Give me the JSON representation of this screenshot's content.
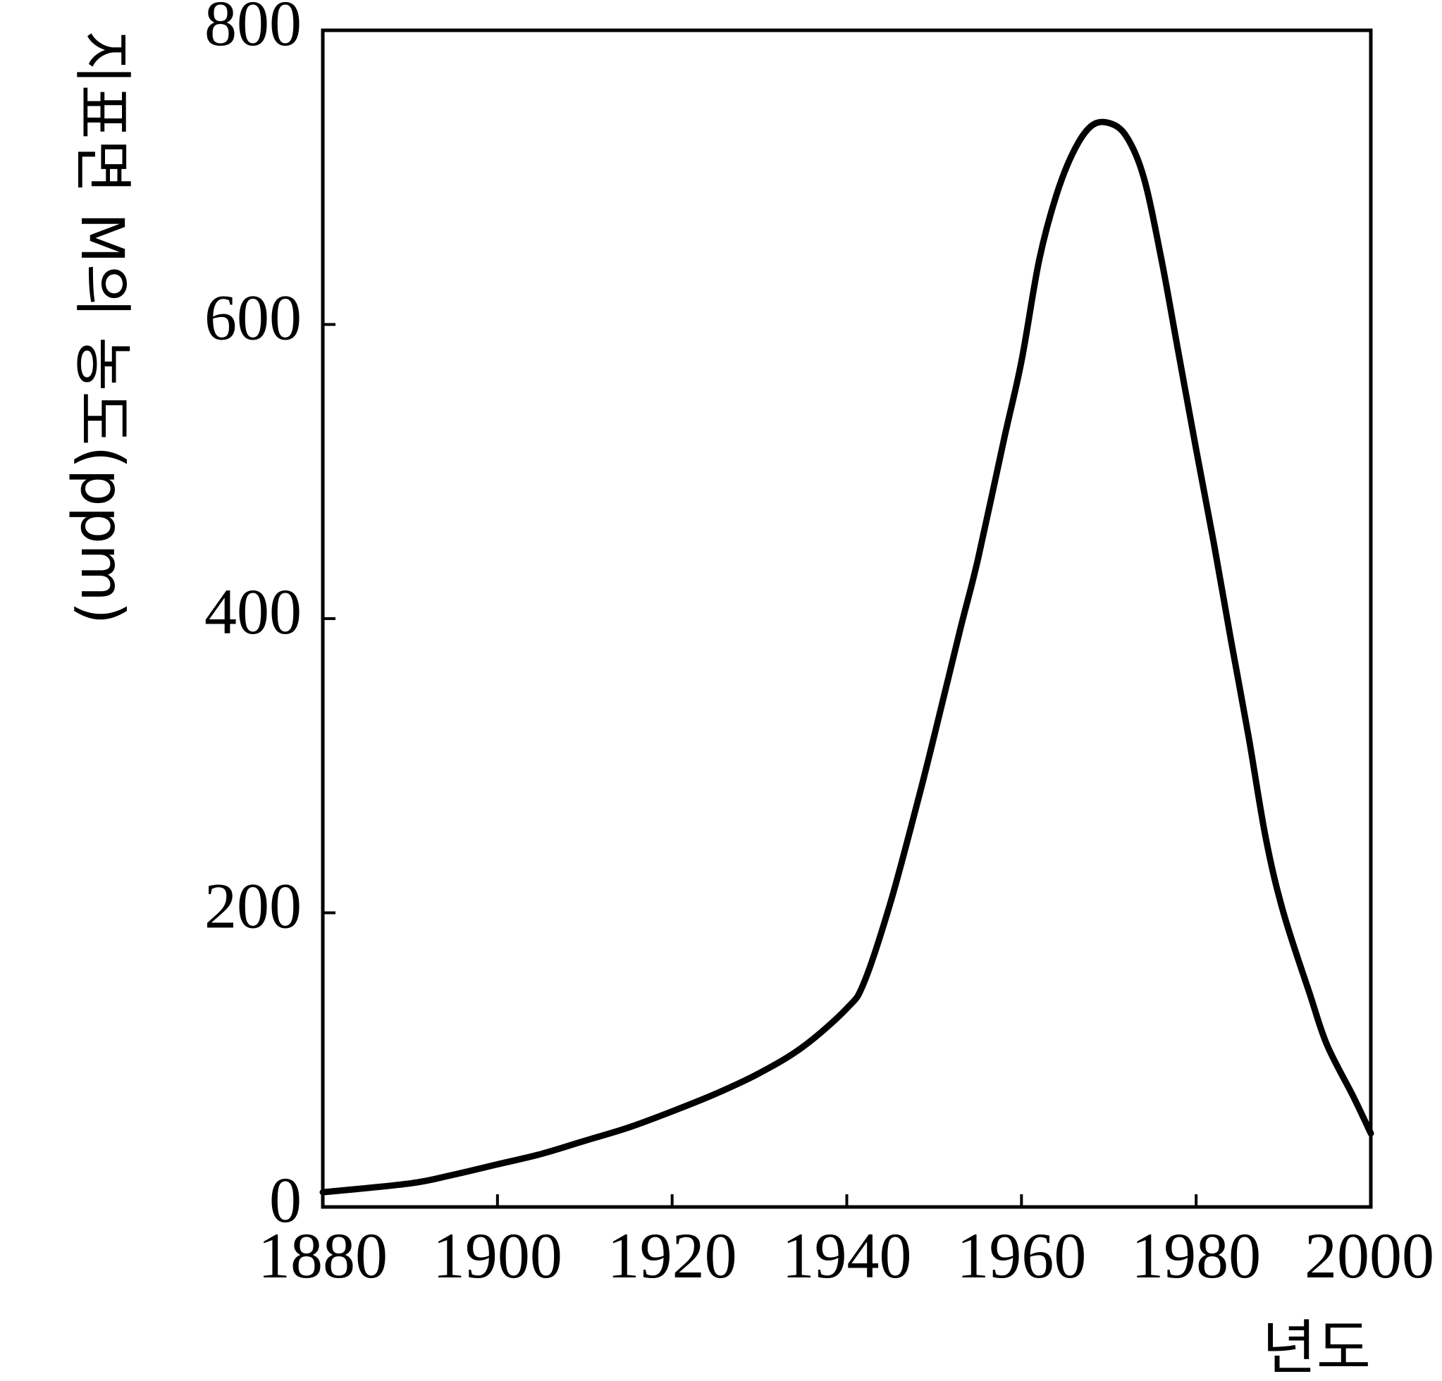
{
  "chart_data": {
    "type": "line",
    "title": "",
    "xlabel": "년도",
    "ylabel": "지표면 M의 농도(ppm)",
    "xlim": [
      1880,
      2000
    ],
    "ylim": [
      0,
      800
    ],
    "x_ticks": [
      "1880",
      "1900",
      "1920",
      "1940",
      "1960",
      "1980",
      "2000"
    ],
    "y_ticks": [
      "0",
      "200",
      "400",
      "600",
      "800"
    ],
    "grid": false,
    "legend": "none",
    "line_color": "#000000",
    "series": [
      {
        "x": [
          1880,
          1890,
          1895,
          1900,
          1905,
          1910,
          1915,
          1920,
          1925,
          1930,
          1935,
          1940,
          1942,
          1945,
          1948,
          1950,
          1953,
          1955,
          1958,
          1960,
          1962,
          1964,
          1966,
          1968,
          1970,
          1972,
          1974,
          1976,
          1978,
          1980,
          1982,
          1984,
          1986,
          1988,
          1990,
          1993,
          1995,
          1998,
          2000
        ],
        "y": [
          10,
          16,
          22,
          29,
          36,
          45,
          54,
          65,
          77,
          91,
          109,
          135,
          153,
          207,
          273,
          320,
          393,
          440,
          522,
          575,
          643,
          688,
          718,
          735,
          737,
          728,
          700,
          645,
          580,
          515,
          452,
          385,
          320,
          250,
          200,
          145,
          110,
          75,
          50
        ]
      }
    ]
  }
}
